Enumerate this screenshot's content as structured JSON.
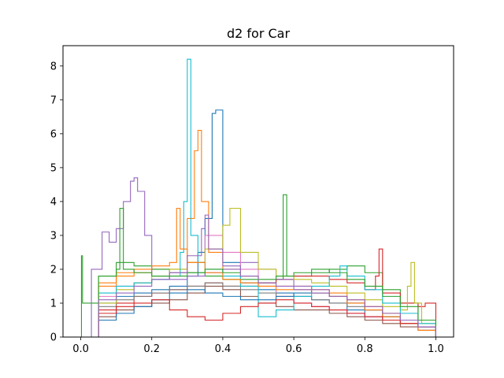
{
  "chart_data": {
    "type": "line",
    "subtype": "step-histogram",
    "title": "d2 for Car",
    "xlabel": "",
    "ylabel": "",
    "xlim": [
      -0.05,
      1.05
    ],
    "ylim": [
      0,
      8.6
    ],
    "x_ticks": [
      0.0,
      0.2,
      0.4,
      0.6,
      0.8,
      1.0
    ],
    "x_tick_labels": [
      "0.0",
      "0.2",
      "0.4",
      "0.6",
      "0.8",
      "1.0"
    ],
    "y_ticks": [
      0,
      1,
      2,
      3,
      4,
      5,
      6,
      7,
      8
    ],
    "y_tick_labels": [
      "0",
      "1",
      "2",
      "3",
      "4",
      "5",
      "6",
      "7",
      "8"
    ],
    "grid": false,
    "legend": "none",
    "colors": [
      "#1f77b4",
      "#ff7f0e",
      "#2ca02c",
      "#d62728",
      "#9467bd",
      "#8c564b",
      "#e377c2",
      "#7f7f7f",
      "#bcbd22",
      "#17becf"
    ],
    "series": [
      {
        "x": [
          0.0,
          0.05,
          0.1,
          0.15,
          0.2,
          0.25,
          0.3,
          0.33,
          0.35,
          0.37,
          0.38,
          0.4,
          0.45,
          0.5,
          0.55,
          0.6,
          0.65,
          0.7,
          0.75,
          0.8,
          0.85,
          0.9,
          0.95,
          1.0
        ],
        "y": [
          0.0,
          1.0,
          1.2,
          1.3,
          1.4,
          1.5,
          1.8,
          2.5,
          3.5,
          6.6,
          6.7,
          2.2,
          1.6,
          1.4,
          1.3,
          1.2,
          1.1,
          1.0,
          0.8,
          0.6,
          0.5,
          0.4,
          0.3,
          0.0
        ]
      },
      {
        "x": [
          0.0,
          0.05,
          0.1,
          0.15,
          0.2,
          0.25,
          0.3,
          0.32,
          0.33,
          0.34,
          0.36,
          0.4,
          0.45,
          0.5,
          0.55,
          0.6,
          0.65,
          0.7,
          0.75,
          0.8,
          0.85,
          0.9,
          0.95,
          1.0
        ],
        "y": [
          0.0,
          1.5,
          1.8,
          1.9,
          2.0,
          2.0,
          3.5,
          5.5,
          6.1,
          4.0,
          2.5,
          2.0,
          1.8,
          1.6,
          1.5,
          1.5,
          1.4,
          1.3,
          1.1,
          0.9,
          0.7,
          0.5,
          0.3,
          0.0
        ]
      },
      {
        "x": [
          0.0,
          0.002,
          0.005,
          0.05,
          0.1,
          0.15,
          0.2,
          0.25,
          0.3,
          0.35,
          0.4,
          0.45,
          0.5,
          0.55,
          0.57,
          0.58,
          0.6,
          0.65,
          0.7,
          0.75,
          0.8,
          0.85,
          0.9,
          0.95,
          1.0
        ],
        "y": [
          0.0,
          2.4,
          1.0,
          1.8,
          2.2,
          2.1,
          2.0,
          1.9,
          1.9,
          1.8,
          1.7,
          1.7,
          1.6,
          1.7,
          4.2,
          1.8,
          1.8,
          1.9,
          2.0,
          2.1,
          1.9,
          1.4,
          1.0,
          0.5,
          0.0
        ]
      },
      {
        "x": [
          0.0,
          0.05,
          0.1,
          0.15,
          0.2,
          0.25,
          0.3,
          0.35,
          0.4,
          0.45,
          0.5,
          0.55,
          0.6,
          0.65,
          0.7,
          0.75,
          0.8,
          0.83,
          0.84,
          0.85,
          0.9,
          0.95,
          0.97,
          1.0
        ],
        "y": [
          0.0,
          0.8,
          1.0,
          1.2,
          1.3,
          1.4,
          1.5,
          1.6,
          1.5,
          1.5,
          1.6,
          1.7,
          1.8,
          1.8,
          1.7,
          1.6,
          1.4,
          1.8,
          2.6,
          1.3,
          1.0,
          0.9,
          1.0,
          0.0
        ]
      },
      {
        "x": [
          0.0,
          0.03,
          0.06,
          0.08,
          0.1,
          0.12,
          0.14,
          0.15,
          0.16,
          0.18,
          0.2,
          0.25,
          0.3,
          0.35,
          0.4,
          0.45,
          0.5,
          0.55,
          0.6,
          0.65,
          0.7,
          0.75,
          0.8,
          0.85,
          0.9,
          0.95,
          1.0
        ],
        "y": [
          0.0,
          2.0,
          3.1,
          2.8,
          3.2,
          4.0,
          4.6,
          4.7,
          4.3,
          3.0,
          1.8,
          1.7,
          1.8,
          1.9,
          2.0,
          2.2,
          2.0,
          1.7,
          1.5,
          1.4,
          1.2,
          1.0,
          0.8,
          0.6,
          0.5,
          0.3,
          0.0
        ]
      },
      {
        "x": [
          0.0,
          0.05,
          0.1,
          0.15,
          0.2,
          0.25,
          0.3,
          0.35,
          0.4,
          0.45,
          0.5,
          0.55,
          0.6,
          0.65,
          0.7,
          0.75,
          0.8,
          0.85,
          0.9,
          0.95,
          1.0
        ],
        "y": [
          0.0,
          0.6,
          0.8,
          0.9,
          1.0,
          1.1,
          1.3,
          1.5,
          1.4,
          1.2,
          1.0,
          0.9,
          0.8,
          0.8,
          0.7,
          0.6,
          0.5,
          0.4,
          0.3,
          0.2,
          0.0
        ]
      },
      {
        "x": [
          0.0,
          0.05,
          0.1,
          0.15,
          0.2,
          0.25,
          0.3,
          0.35,
          0.4,
          0.45,
          0.5,
          0.55,
          0.6,
          0.65,
          0.7,
          0.75,
          0.8,
          0.85,
          0.9,
          0.95,
          1.0
        ],
        "y": [
          0.0,
          1.2,
          1.5,
          1.6,
          1.7,
          1.9,
          2.2,
          3.0,
          2.5,
          2.0,
          1.5,
          1.2,
          1.0,
          0.9,
          0.8,
          0.7,
          0.6,
          0.5,
          0.4,
          0.2,
          0.0
        ]
      },
      {
        "x": [
          0.0,
          0.05,
          0.1,
          0.15,
          0.2,
          0.25,
          0.3,
          0.35,
          0.4,
          0.45,
          0.5,
          0.55,
          0.6,
          0.65,
          0.7,
          0.75,
          0.8,
          0.85,
          0.9,
          0.95,
          1.0
        ],
        "y": [
          0.0,
          0.9,
          1.1,
          1.2,
          1.3,
          1.4,
          1.5,
          1.6,
          1.5,
          1.4,
          1.3,
          1.2,
          1.2,
          1.1,
          1.0,
          0.9,
          0.8,
          0.6,
          0.4,
          0.2,
          0.0
        ]
      },
      {
        "x": [
          0.0,
          0.05,
          0.1,
          0.15,
          0.2,
          0.25,
          0.3,
          0.35,
          0.4,
          0.42,
          0.45,
          0.5,
          0.55,
          0.6,
          0.65,
          0.7,
          0.75,
          0.8,
          0.85,
          0.9,
          0.92,
          0.93,
          0.94,
          0.96,
          1.0
        ],
        "y": [
          0.0,
          1.0,
          1.4,
          1.6,
          1.8,
          2.0,
          2.2,
          2.6,
          3.3,
          3.8,
          2.5,
          2.0,
          1.8,
          1.7,
          1.6,
          1.5,
          1.3,
          1.1,
          0.9,
          0.8,
          1.5,
          2.2,
          1.0,
          0.4,
          0.0
        ]
      },
      {
        "x": [
          0.0,
          0.05,
          0.1,
          0.15,
          0.2,
          0.25,
          0.28,
          0.29,
          0.3,
          0.31,
          0.33,
          0.35,
          0.4,
          0.45,
          0.5,
          0.55,
          0.6,
          0.65,
          0.7,
          0.73,
          0.75,
          0.8,
          0.85,
          0.9,
          0.95,
          1.0
        ],
        "y": [
          0.0,
          1.3,
          1.5,
          1.6,
          1.7,
          1.8,
          2.5,
          4.0,
          8.2,
          3.0,
          2.2,
          2.0,
          1.8,
          1.5,
          0.6,
          0.8,
          1.2,
          1.5,
          1.8,
          2.1,
          1.8,
          1.4,
          1.0,
          0.7,
          0.4,
          0.0
        ]
      },
      {
        "x": [
          0.0,
          0.05,
          0.1,
          0.15,
          0.2,
          0.25,
          0.3,
          0.35,
          0.4,
          0.45,
          0.5,
          0.55,
          0.6,
          0.65,
          0.7,
          0.75,
          0.8,
          0.85,
          0.9,
          0.95,
          1.0
        ],
        "y": [
          0.0,
          0.5,
          0.7,
          0.9,
          1.1,
          1.3,
          1.4,
          1.3,
          1.2,
          1.1,
          1.1,
          1.2,
          1.3,
          1.3,
          1.2,
          1.0,
          0.8,
          0.6,
          0.4,
          0.3,
          0.0
        ]
      },
      {
        "x": [
          0.0,
          0.05,
          0.1,
          0.15,
          0.2,
          0.25,
          0.27,
          0.28,
          0.3,
          0.35,
          0.4,
          0.45,
          0.5,
          0.55,
          0.6,
          0.65,
          0.7,
          0.75,
          0.8,
          0.85,
          0.9,
          0.95,
          1.0
        ],
        "y": [
          0.0,
          1.6,
          1.9,
          2.0,
          2.1,
          2.2,
          3.8,
          2.6,
          2.2,
          1.9,
          1.7,
          1.6,
          1.5,
          1.4,
          1.4,
          1.3,
          1.2,
          1.0,
          0.8,
          0.6,
          0.4,
          0.2,
          0.0
        ]
      },
      {
        "x": [
          0.0,
          0.05,
          0.1,
          0.11,
          0.12,
          0.15,
          0.2,
          0.25,
          0.3,
          0.35,
          0.4,
          0.45,
          0.5,
          0.55,
          0.6,
          0.65,
          0.7,
          0.75,
          0.8,
          0.85,
          0.9,
          0.95,
          1.0
        ],
        "y": [
          0.0,
          1.8,
          2.0,
          3.8,
          2.0,
          1.9,
          1.8,
          1.8,
          1.9,
          2.0,
          1.9,
          1.8,
          1.7,
          1.8,
          1.9,
          2.0,
          1.9,
          1.7,
          1.5,
          1.2,
          0.9,
          0.5,
          0.0
        ]
      },
      {
        "x": [
          0.0,
          0.05,
          0.1,
          0.15,
          0.2,
          0.25,
          0.3,
          0.35,
          0.4,
          0.45,
          0.5,
          0.55,
          0.6,
          0.65,
          0.7,
          0.75,
          0.8,
          0.85,
          0.9,
          0.95,
          1.0
        ],
        "y": [
          0.0,
          0.7,
          0.9,
          1.0,
          1.1,
          0.8,
          0.6,
          0.5,
          0.7,
          0.9,
          1.0,
          1.1,
          1.0,
          0.9,
          0.8,
          0.7,
          0.6,
          0.5,
          0.4,
          0.3,
          0.0
        ]
      },
      {
        "x": [
          0.0,
          0.05,
          0.1,
          0.15,
          0.2,
          0.25,
          0.3,
          0.34,
          0.35,
          0.36,
          0.4,
          0.45,
          0.5,
          0.55,
          0.6,
          0.65,
          0.7,
          0.75,
          0.8,
          0.85,
          0.9,
          0.95,
          1.0
        ],
        "y": [
          0.0,
          1.1,
          1.3,
          1.5,
          1.7,
          1.9,
          2.4,
          3.2,
          3.6,
          2.6,
          2.1,
          1.8,
          1.6,
          1.5,
          1.4,
          1.3,
          1.2,
          1.1,
          0.9,
          0.7,
          0.5,
          0.3,
          0.0
        ]
      }
    ]
  }
}
